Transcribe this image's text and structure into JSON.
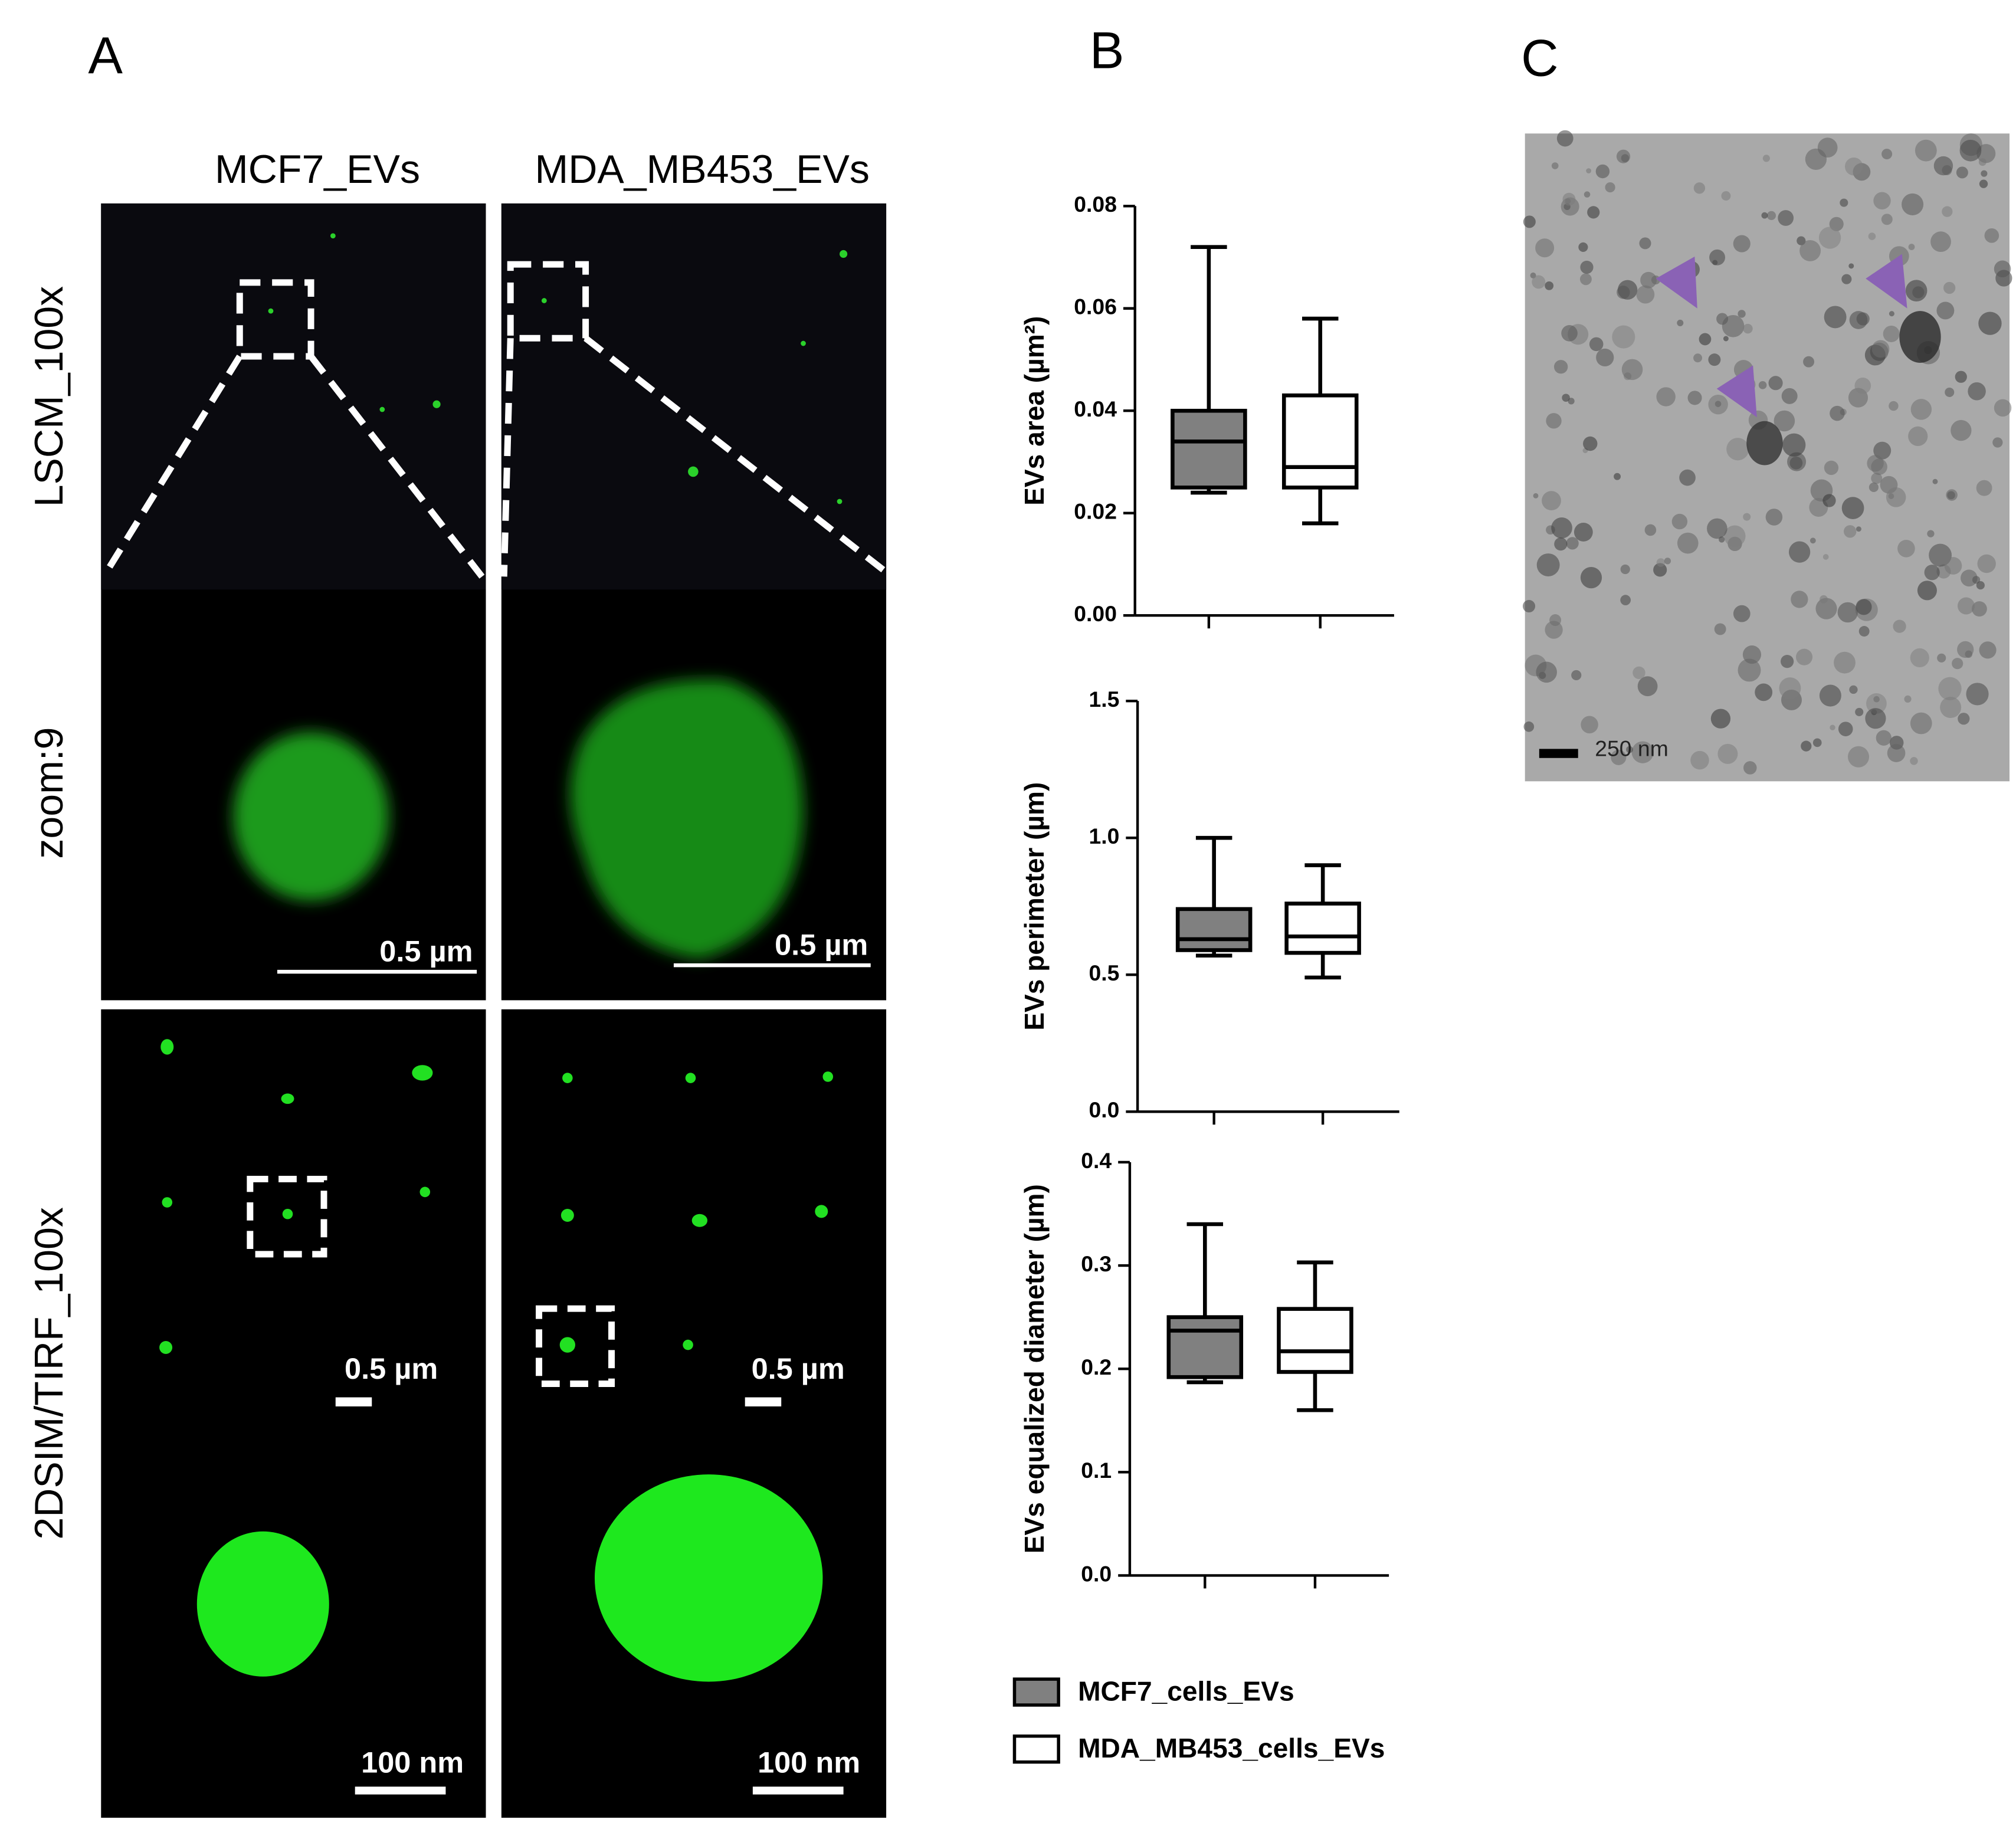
{
  "panel_a": {
    "letter": "A",
    "columns": [
      "MCF7_EVs",
      "MDA_MB453_EVs"
    ],
    "rows": [
      "LSCM_100x",
      "zoom:9",
      "2DSIM/TIRF_100x"
    ],
    "scale_bar_zoom": "0.5 µm",
    "scale_bar_tirf": "0.5 µm",
    "scale_bar_inset": "100 nm"
  },
  "panel_b": {
    "letter": "B"
  },
  "panel_c": {
    "letter": "C",
    "scale_bar": "250 nm"
  },
  "legend": {
    "entries": [
      {
        "name": "MCF7_cells_EVs",
        "color": "#808080"
      },
      {
        "name": "MDA_MB453_cells_EVs",
        "color": "#ffffff"
      }
    ]
  },
  "chart_data": [
    {
      "type": "box",
      "y_label": "EVs area (µm²)",
      "ylim": [
        0,
        0.08
      ],
      "yticks": [
        {
          "value": 0,
          "label": "0.00"
        },
        0.02,
        0.04,
        0.06,
        0.08
      ],
      "series": [
        {
          "color": "#808080",
          "stats": {
            "min": 0.024,
            "q1": 0.025,
            "median": 0.034,
            "q3": 0.04,
            "max": 0.072
          }
        },
        {
          "color": "#ffffff",
          "stats": {
            "min": 0.018,
            "q1": 0.025,
            "median": 0.029,
            "q3": 0.043,
            "max": 0.058
          }
        }
      ]
    },
    {
      "type": "box",
      "y_label": "EVs perimeter (µm)",
      "ylim": [
        0,
        1.5
      ],
      "yticks": [
        {
          "value": 0,
          "label": "0.0"
        },
        0.5,
        {
          "value": 1,
          "label": "1.0"
        },
        1.5
      ],
      "series": [
        {
          "color": "#808080",
          "stats": {
            "min": 0.57,
            "q1": 0.59,
            "median": 0.63,
            "q3": 0.74,
            "max": 1.0
          }
        },
        {
          "color": "#ffffff",
          "stats": {
            "min": 0.49,
            "q1": 0.58,
            "median": 0.64,
            "q3": 0.76,
            "max": 0.9
          }
        }
      ]
    },
    {
      "type": "box",
      "y_label": "EVs equalized diameter (µm)",
      "ylim": [
        0,
        0.4
      ],
      "yticks": [
        {
          "value": 0,
          "label": "0.0"
        },
        0.1,
        0.2,
        0.3,
        0.4
      ],
      "series": [
        {
          "color": "#808080",
          "stats": {
            "min": 0.187,
            "q1": 0.192,
            "median": 0.237,
            "q3": 0.25,
            "max": 0.34
          }
        },
        {
          "color": "#ffffff",
          "stats": {
            "min": 0.16,
            "q1": 0.197,
            "median": 0.217,
            "q3": 0.258,
            "max": 0.303
          }
        }
      ]
    }
  ]
}
